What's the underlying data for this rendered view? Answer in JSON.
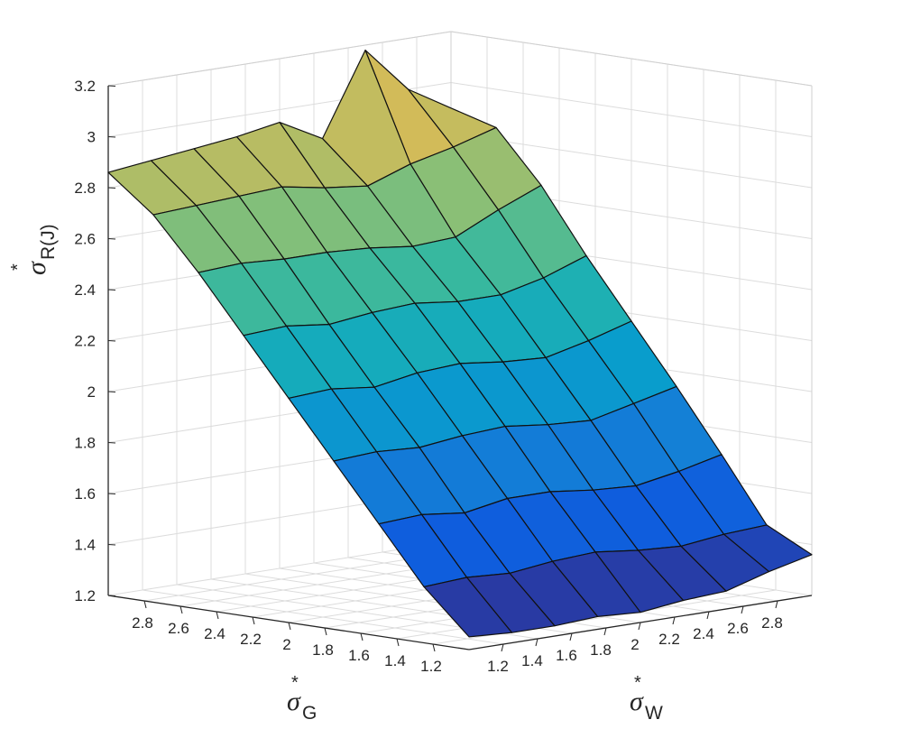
{
  "chart_data": {
    "type": "surface",
    "title": "",
    "zlabel": {
      "symbol": "σ",
      "sup": "*",
      "sub": "R(J)"
    },
    "xlabel": {
      "symbol": "σ",
      "sup": "*",
      "sub": "W"
    },
    "ylabel": {
      "symbol": "σ",
      "sup": "*",
      "sub": "G"
    },
    "zlim": [
      1.2,
      3.2
    ],
    "xlim": [
      1.0,
      3.0
    ],
    "ylim": [
      1.0,
      3.0
    ],
    "z_ticks": [
      "1.2",
      "1.4",
      "1.6",
      "1.8",
      "2",
      "2.2",
      "2.4",
      "2.6",
      "2.8",
      "3",
      "3.2"
    ],
    "x_ticks": [
      "1.2",
      "1.4",
      "1.6",
      "1.8",
      "2",
      "2.2",
      "2.4",
      "2.6",
      "2.8"
    ],
    "y_ticks": [
      "1.2",
      "1.4",
      "1.6",
      "1.8",
      "2",
      "2.2",
      "2.4",
      "2.6",
      "2.8"
    ],
    "grid": true,
    "colormap": [
      "#352A87",
      "#0F5CDD",
      "#1481D6",
      "#06A4CA",
      "#2EB7A4",
      "#87BF77",
      "#D1BB59",
      "#FEC832",
      "#F9FB0E"
    ],
    "surface_x": [
      1.0,
      1.25,
      1.5,
      1.75,
      2.0,
      2.25,
      2.5,
      2.75,
      3.0
    ],
    "surface_y": [
      1.0,
      1.25,
      1.5,
      1.75,
      2.0,
      2.25,
      2.5,
      2.75,
      3.0
    ],
    "z": [
      [
        1.25,
        1.24,
        1.24,
        1.25,
        1.24,
        1.26,
        1.27,
        1.32,
        1.36
      ],
      [
        1.42,
        1.43,
        1.42,
        1.44,
        1.45,
        1.43,
        1.42,
        1.44,
        1.45
      ],
      [
        1.64,
        1.65,
        1.63,
        1.66,
        1.66,
        1.64,
        1.63,
        1.66,
        1.7
      ],
      [
        1.86,
        1.87,
        1.86,
        1.88,
        1.89,
        1.87,
        1.86,
        1.9,
        1.94
      ],
      [
        2.08,
        2.09,
        2.07,
        2.1,
        2.11,
        2.09,
        2.08,
        2.12,
        2.17
      ],
      [
        2.3,
        2.31,
        2.29,
        2.31,
        2.32,
        2.3,
        2.3,
        2.34,
        2.4
      ],
      [
        2.52,
        2.53,
        2.52,
        2.52,
        2.51,
        2.49,
        2.5,
        2.58,
        2.65
      ],
      [
        2.72,
        2.73,
        2.74,
        2.75,
        2.72,
        2.7,
        2.76,
        2.8,
        2.85
      ],
      [
        2.86,
        2.88,
        2.9,
        2.92,
        2.95,
        2.86,
        3.18,
        3.0,
        2.9
      ]
    ]
  }
}
